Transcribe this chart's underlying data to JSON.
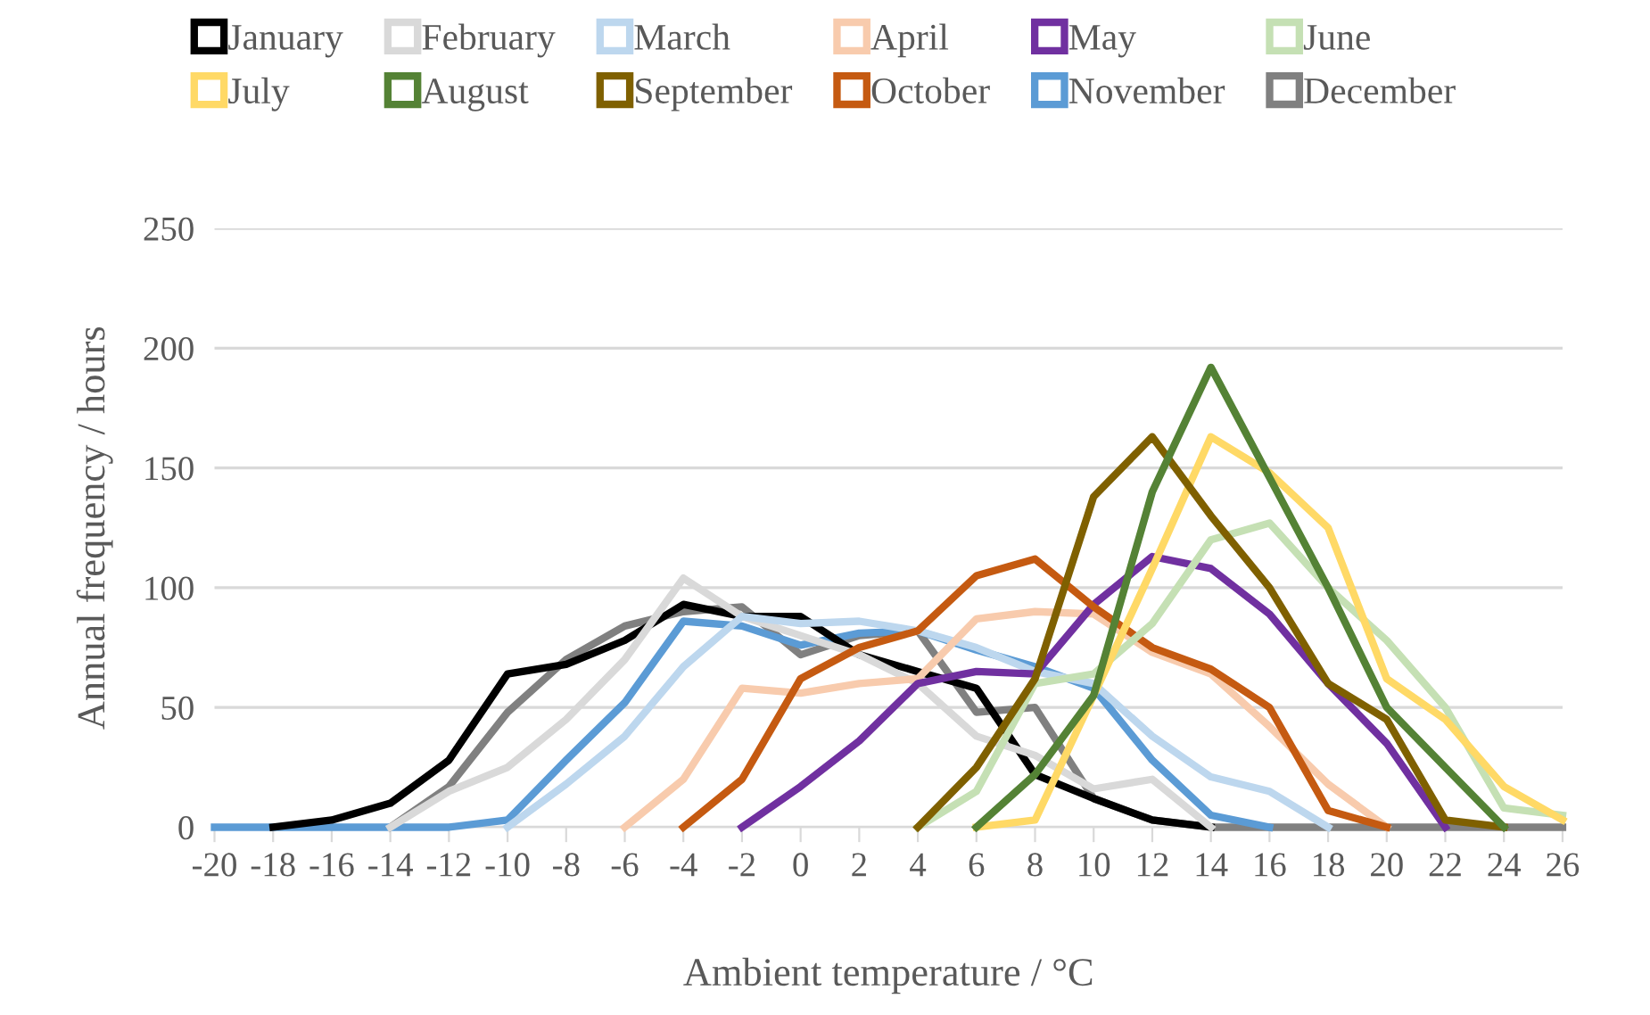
{
  "chart_data": {
    "type": "line",
    "xlabel": "Ambient temperature / °C",
    "ylabel": "Annual frequency / hours",
    "x": [
      -20,
      -18,
      -16,
      -14,
      -12,
      -10,
      -8,
      -6,
      -4,
      -2,
      0,
      2,
      4,
      6,
      8,
      10,
      12,
      14,
      16,
      18,
      20,
      22,
      24,
      26
    ],
    "xlim": [
      -20,
      26
    ],
    "xticks": [
      -20,
      -18,
      -16,
      -14,
      -12,
      -10,
      -8,
      -6,
      -4,
      -2,
      0,
      2,
      4,
      6,
      8,
      10,
      12,
      14,
      16,
      18,
      20,
      22,
      24,
      26
    ],
    "ylim": [
      0,
      250
    ],
    "yticks": [
      0,
      50,
      100,
      150,
      200,
      250
    ],
    "grid": "y",
    "legend": "top",
    "marker": "none",
    "line_style": "solid",
    "series": [
      {
        "name": "January",
        "color": "#000000",
        "values": [
          null,
          0,
          3,
          10,
          28,
          64,
          68,
          78,
          93,
          88,
          88,
          72,
          65,
          58,
          22,
          12,
          3,
          0,
          null,
          null,
          null,
          null,
          null,
          null
        ]
      },
      {
        "name": "February",
        "color": "#d9d9d9",
        "values": [
          null,
          null,
          null,
          0,
          15,
          25,
          45,
          70,
          104,
          88,
          80,
          72,
          60,
          38,
          30,
          16,
          20,
          0,
          null,
          null,
          null,
          null,
          null,
          null
        ]
      },
      {
        "name": "March",
        "color": "#bdd7ee",
        "values": [
          null,
          null,
          null,
          null,
          null,
          0,
          18,
          38,
          67,
          88,
          85,
          86,
          82,
          75,
          65,
          60,
          38,
          21,
          15,
          0,
          null,
          null,
          null,
          null
        ]
      },
      {
        "name": "April",
        "color": "#f8cbad",
        "values": [
          null,
          null,
          null,
          null,
          null,
          null,
          null,
          0,
          20,
          58,
          56,
          60,
          62,
          87,
          90,
          89,
          73,
          64,
          42,
          18,
          0,
          null,
          null,
          null
        ]
      },
      {
        "name": "May",
        "color": "#7030a0",
        "values": [
          null,
          null,
          null,
          null,
          null,
          null,
          null,
          null,
          null,
          0,
          17,
          36,
          60,
          65,
          64,
          93,
          113,
          108,
          89,
          60,
          35,
          0,
          null,
          null
        ]
      },
      {
        "name": "June",
        "color": "#c5e0b4",
        "values": [
          null,
          null,
          null,
          null,
          null,
          null,
          null,
          null,
          null,
          null,
          null,
          null,
          0,
          15,
          60,
          64,
          85,
          120,
          127,
          100,
          78,
          50,
          8,
          5
        ]
      },
      {
        "name": "July",
        "color": "#ffd966",
        "values": [
          null,
          null,
          null,
          null,
          null,
          null,
          null,
          null,
          null,
          null,
          null,
          null,
          null,
          0,
          3,
          55,
          108,
          163,
          148,
          125,
          62,
          45,
          17,
          3
        ]
      },
      {
        "name": "August",
        "color": "#548235",
        "values": [
          null,
          null,
          null,
          null,
          null,
          null,
          null,
          null,
          null,
          null,
          null,
          null,
          null,
          0,
          22,
          55,
          140,
          192,
          146,
          100,
          50,
          25,
          0,
          null
        ]
      },
      {
        "name": "September",
        "color": "#7f6000",
        "values": [
          null,
          null,
          null,
          null,
          null,
          null,
          null,
          null,
          null,
          null,
          null,
          null,
          0,
          25,
          62,
          138,
          163,
          130,
          100,
          60,
          45,
          3,
          0,
          null
        ]
      },
      {
        "name": "October",
        "color": "#c55a11",
        "values": [
          null,
          null,
          null,
          null,
          null,
          null,
          null,
          null,
          0,
          20,
          62,
          75,
          82,
          105,
          112,
          92,
          75,
          66,
          50,
          7,
          0,
          null,
          null,
          null
        ]
      },
      {
        "name": "November",
        "color": "#5b9bd5",
        "values": [
          0,
          0,
          0,
          0,
          0,
          3,
          28,
          52,
          86,
          84,
          76,
          81,
          82,
          74,
          67,
          58,
          28,
          5,
          0,
          null,
          null,
          null,
          null,
          null
        ]
      },
      {
        "name": "December",
        "color": "#808080",
        "values": [
          null,
          null,
          null,
          0,
          17,
          48,
          70,
          84,
          90,
          92,
          72,
          80,
          82,
          48,
          50,
          12,
          3,
          0,
          0,
          0,
          0,
          0,
          0,
          0
        ]
      }
    ]
  }
}
